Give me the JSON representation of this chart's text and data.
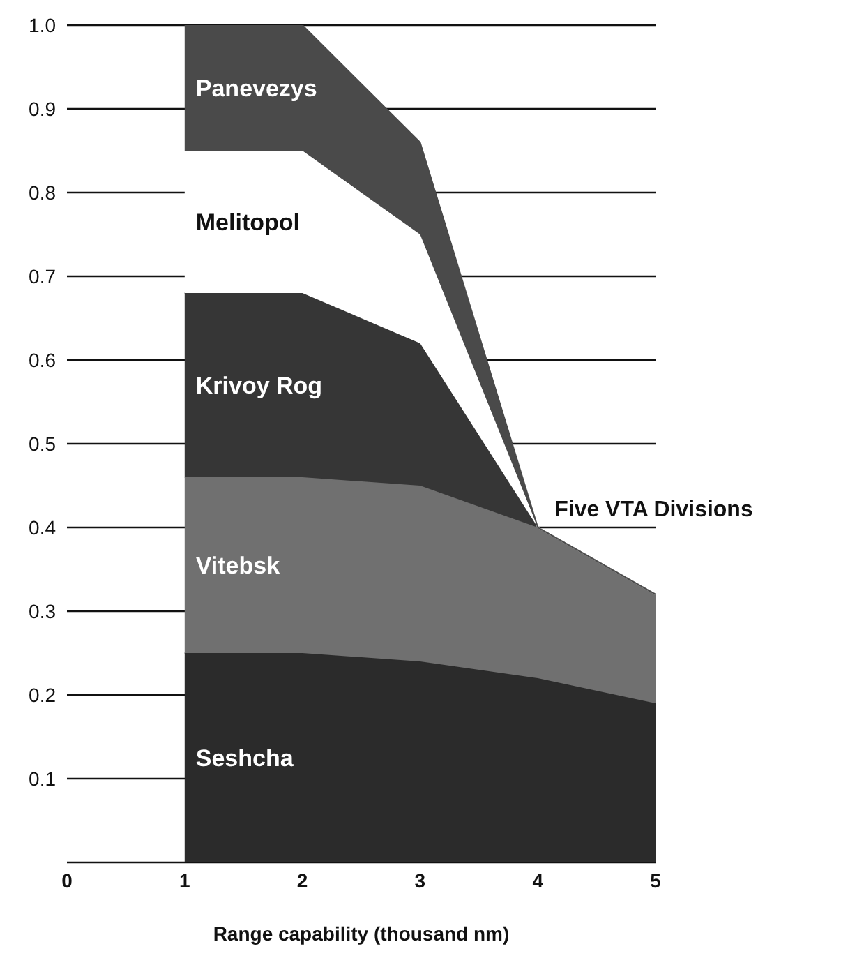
{
  "chart_data": {
    "type": "area",
    "stacked": true,
    "xlabel": "Range capability (thousand nm)",
    "x": [
      1,
      2,
      3,
      4,
      5
    ],
    "series": [
      {
        "name": "Seshcha",
        "color": "#2b2b2b",
        "values": [
          0.25,
          0.25,
          0.24,
          0.22,
          0.19
        ]
      },
      {
        "name": "Vitebsk",
        "color": "#707070",
        "values": [
          0.21,
          0.21,
          0.21,
          0.18,
          0.13
        ]
      },
      {
        "name": "Krivoy Rog",
        "color": "#363636",
        "values": [
          0.22,
          0.22,
          0.17,
          0,
          0
        ]
      },
      {
        "name": "Melitopol",
        "color": "#ffffff",
        "values": [
          0.17,
          0.17,
          0.13,
          0,
          0
        ]
      },
      {
        "name": "Panevezys",
        "color": "#4a4a4a",
        "values": [
          0.15,
          0.15,
          0.11,
          0,
          0
        ]
      }
    ],
    "xlim": [
      0,
      5
    ],
    "xticks": [
      0,
      1,
      2,
      3,
      4,
      5
    ],
    "ylim": [
      0,
      1
    ],
    "yticks": [
      0.1,
      0.2,
      0.3,
      0.4,
      0.5,
      0.6,
      0.7,
      0.8,
      0.9,
      {
        "value": 1,
        "label": "1.0"
      }
    ],
    "grid": "y",
    "legend": false,
    "annotations": [
      {
        "text": "Five VTA Divisions",
        "x": 4,
        "y": 0.4
      }
    ]
  }
}
